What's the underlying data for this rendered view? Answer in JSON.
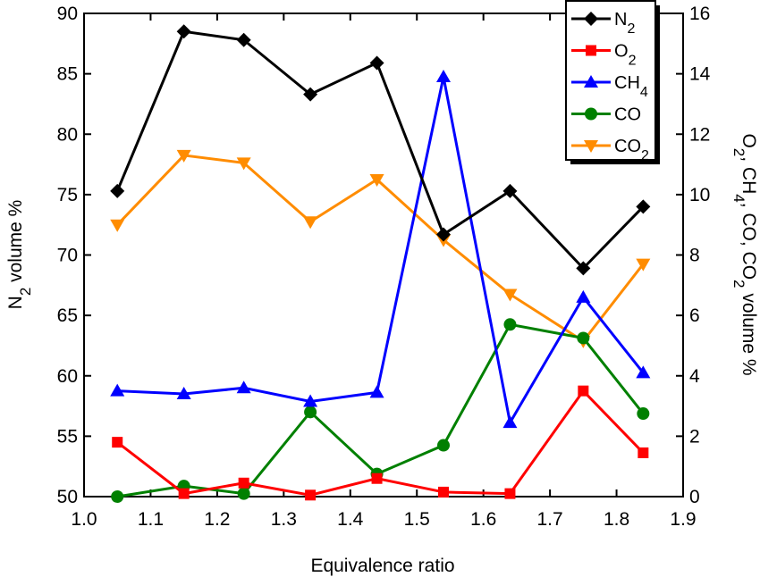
{
  "chart_data": {
    "type": "line",
    "xlabel": "Equivalence ratio",
    "y_left_label": [
      "N",
      "2",
      " volume %"
    ],
    "y_right_label": [
      "O",
      "2",
      ", CH",
      "4",
      ", CO, CO",
      "2",
      " volume %"
    ],
    "xlim": [
      1.0,
      1.9
    ],
    "xticks": [
      "1.0",
      "1.1",
      "1.2",
      "1.3",
      "1.4",
      "1.5",
      "1.6",
      "1.7",
      "1.8",
      "1.9"
    ],
    "ylim_left": [
      50,
      90
    ],
    "yticks_left": [
      "50",
      "55",
      "60",
      "65",
      "70",
      "75",
      "80",
      "85",
      "90"
    ],
    "ylim_right": [
      0,
      16
    ],
    "yticks_right": [
      "0",
      "2",
      "4",
      "6",
      "8",
      "10",
      "12",
      "14",
      "16"
    ],
    "grid": false,
    "legend_position": "top-right",
    "x": [
      1.05,
      1.15,
      1.24,
      1.34,
      1.44,
      1.54,
      1.64,
      1.75,
      1.84
    ],
    "series": [
      {
        "key": "N2",
        "legend": [
          "N",
          "2"
        ],
        "axis": "left",
        "color": "#000000",
        "marker": "diamond",
        "values": [
          75.3,
          88.5,
          87.8,
          83.3,
          85.9,
          71.7,
          75.3,
          68.9,
          74.0
        ]
      },
      {
        "key": "O2",
        "legend": [
          "O",
          "2"
        ],
        "axis": "right",
        "color": "#ff0000",
        "marker": "square",
        "values": [
          1.8,
          0.1,
          0.45,
          0.05,
          0.6,
          0.15,
          0.1,
          3.5,
          1.45
        ]
      },
      {
        "key": "CH4",
        "legend": [
          "CH",
          "4"
        ],
        "axis": "right",
        "color": "#0000ff",
        "marker": "triangle-up",
        "values": [
          3.5,
          3.4,
          3.6,
          3.15,
          3.45,
          13.9,
          2.45,
          6.6,
          4.1
        ]
      },
      {
        "key": "CO",
        "legend": [
          "CO",
          ""
        ],
        "axis": "right",
        "color": "#008000",
        "marker": "circle",
        "values": [
          0.0,
          0.35,
          0.1,
          2.8,
          0.75,
          1.7,
          5.7,
          5.25,
          2.75
        ]
      },
      {
        "key": "CO2",
        "legend": [
          "CO",
          "2"
        ],
        "axis": "right",
        "color": "#ff8c00",
        "marker": "triangle-down",
        "values": [
          9.0,
          11.3,
          11.05,
          9.1,
          10.5,
          8.5,
          6.7,
          5.15,
          7.7
        ]
      }
    ]
  }
}
